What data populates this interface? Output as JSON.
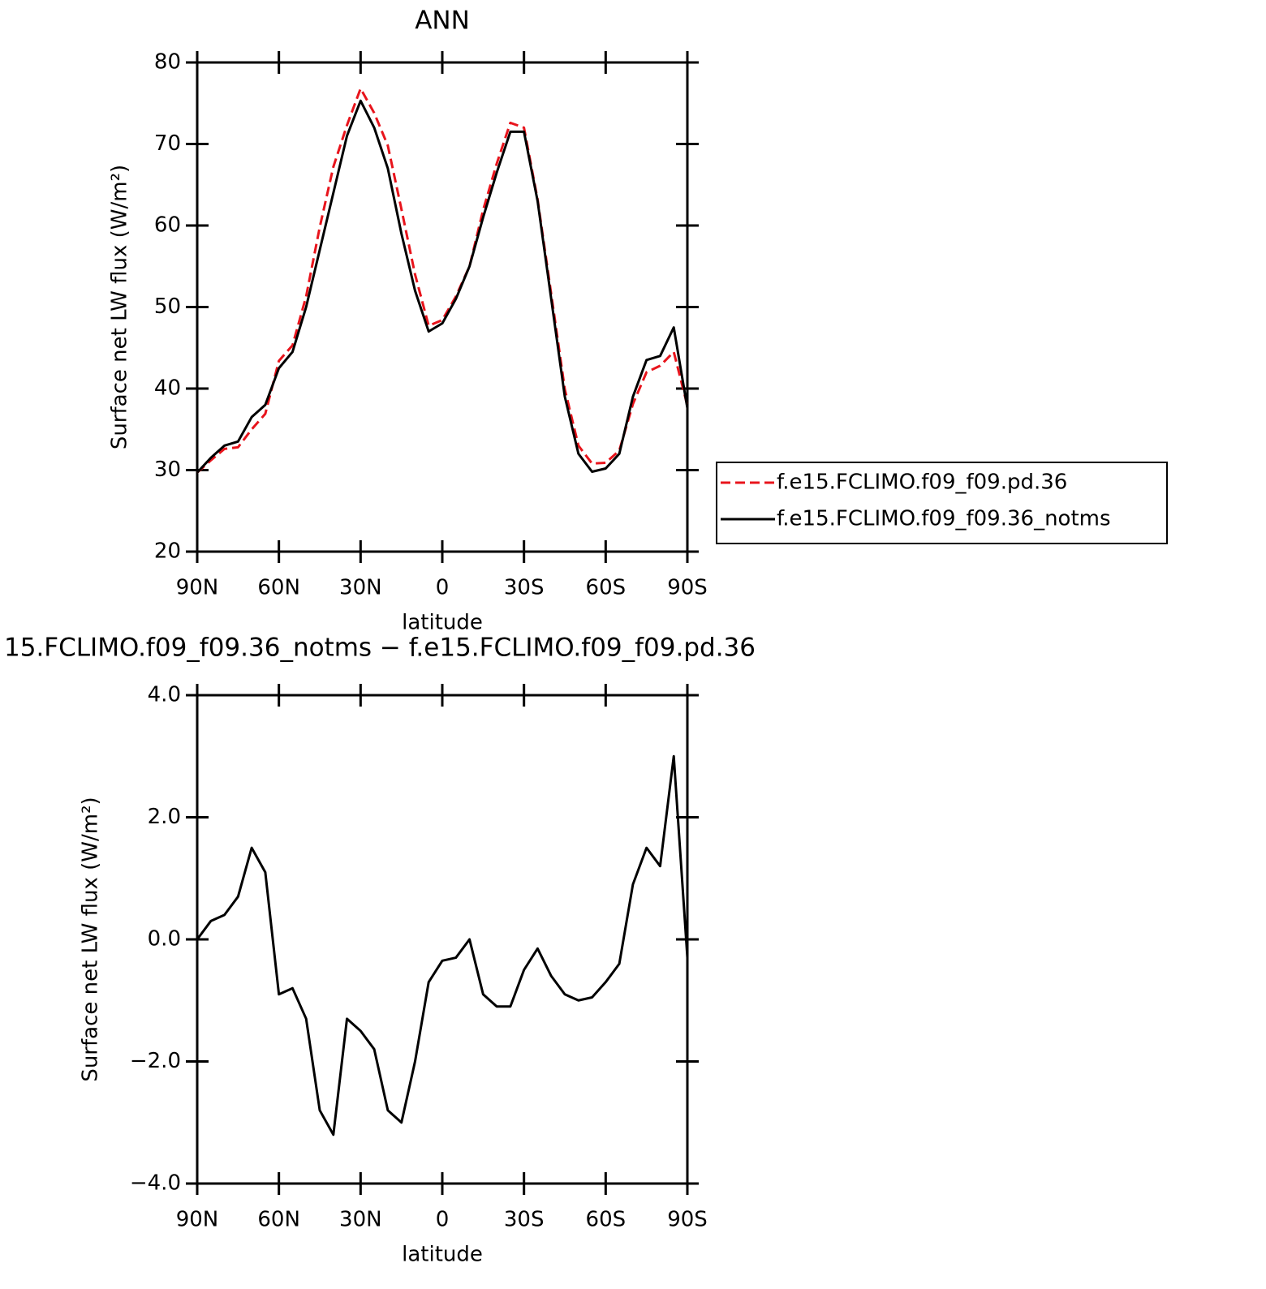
{
  "chart_data": [
    {
      "type": "line",
      "title": "ANN",
      "xlabel": "latitude",
      "ylabel": "Surface net LW flux (W/m²)",
      "x": [
        90,
        85,
        80,
        75,
        70,
        65,
        60,
        55,
        50,
        45,
        40,
        35,
        30,
        25,
        20,
        15,
        10,
        5,
        0,
        -5,
        -10,
        -15,
        -20,
        -25,
        -30,
        -35,
        -40,
        -45,
        -50,
        -55,
        -60,
        -65,
        -70,
        -75,
        -80,
        -85,
        -90
      ],
      "series": [
        {
          "name": "f.e15.FCLIMO.f09_f09.pd.36",
          "color": "#e8141c",
          "linestyle": "dashed",
          "values": [
            29.7,
            31.2,
            32.6,
            32.8,
            35.0,
            36.9,
            43.4,
            45.3,
            51.3,
            59.8,
            67.2,
            72.3,
            76.8,
            73.8,
            69.8,
            62.0,
            54.0,
            47.7,
            48.4,
            51.3,
            55.0,
            61.9,
            67.6,
            72.6,
            72.0,
            63.2,
            51.6,
            39.9,
            33.0,
            30.8,
            30.9,
            32.4,
            38.1,
            42.0,
            42.8,
            44.5,
            37.9
          ]
        },
        {
          "name": "f.e15.FCLIMO.f09_f09.36_notms",
          "color": "#000000",
          "linestyle": "solid",
          "values": [
            29.7,
            31.5,
            33.0,
            33.5,
            36.5,
            38.0,
            42.5,
            44.5,
            50.0,
            57.0,
            64.0,
            71.0,
            75.3,
            72.0,
            67.0,
            59.0,
            52.0,
            47.0,
            48.0,
            51.0,
            55.0,
            61.0,
            66.5,
            71.5,
            71.5,
            63.0,
            51.0,
            39.0,
            32.0,
            29.8,
            30.2,
            32.0,
            39.0,
            43.5,
            44.0,
            47.5,
            37.6
          ]
        }
      ],
      "xlim": [
        90,
        -90
      ],
      "xticks": [
        {
          "value": 90,
          "label": "90N"
        },
        {
          "value": 60,
          "label": "60N"
        },
        {
          "value": 30,
          "label": "30N"
        },
        0,
        {
          "value": -30,
          "label": "30S"
        },
        {
          "value": -60,
          "label": "60S"
        },
        {
          "value": -90,
          "label": "90S"
        }
      ],
      "ylim": [
        20,
        80
      ],
      "yticks": [
        20,
        30,
        40,
        50,
        60,
        70,
        80
      ],
      "legend": "right"
    },
    {
      "type": "line",
      "title": "15.FCLIMO.f09_f09.36_notms − f.e15.FCLIMO.f09_f09.pd.36",
      "xlabel": "latitude",
      "ylabel": "Surface net LW flux (W/m²)",
      "x": [
        90,
        85,
        80,
        75,
        70,
        65,
        60,
        55,
        50,
        45,
        40,
        35,
        30,
        25,
        20,
        15,
        10,
        5,
        0,
        -5,
        -10,
        -15,
        -20,
        -25,
        -30,
        -35,
        -40,
        -45,
        -50,
        -55,
        -60,
        -65,
        -70,
        -75,
        -80,
        -85,
        -90
      ],
      "series": [
        {
          "color": "#000000",
          "linestyle": "solid",
          "values": [
            0,
            0.3,
            0.4,
            0.7,
            1.5,
            1.1,
            -0.9,
            -0.8,
            -1.3,
            -2.8,
            -3.2,
            -1.3,
            -1.5,
            -1.8,
            -2.8,
            -3.0,
            -2.0,
            -0.7,
            -0.35,
            -0.3,
            0,
            -0.9,
            -1.1,
            -1.1,
            -0.5,
            -0.15,
            -0.6,
            -0.9,
            -1.0,
            -0.95,
            -0.7,
            -0.4,
            0.9,
            1.5,
            1.2,
            3.0,
            -0.3
          ]
        }
      ],
      "xlim": [
        90,
        -90
      ],
      "xticks": [
        {
          "value": 90,
          "label": "90N"
        },
        {
          "value": 60,
          "label": "60N"
        },
        {
          "value": 30,
          "label": "30N"
        },
        0,
        {
          "value": -30,
          "label": "30S"
        },
        {
          "value": -60,
          "label": "60S"
        },
        {
          "value": -90,
          "label": "90S"
        }
      ],
      "ylim": [
        -4,
        4
      ],
      "yticks": [
        {
          "value": -4,
          "label": "−4.0"
        },
        {
          "value": -2,
          "label": "−2.0"
        },
        {
          "value": 0,
          "label": "0.0"
        },
        {
          "value": 2,
          "label": "2.0"
        },
        {
          "value": 4,
          "label": "4.0"
        }
      ]
    }
  ]
}
